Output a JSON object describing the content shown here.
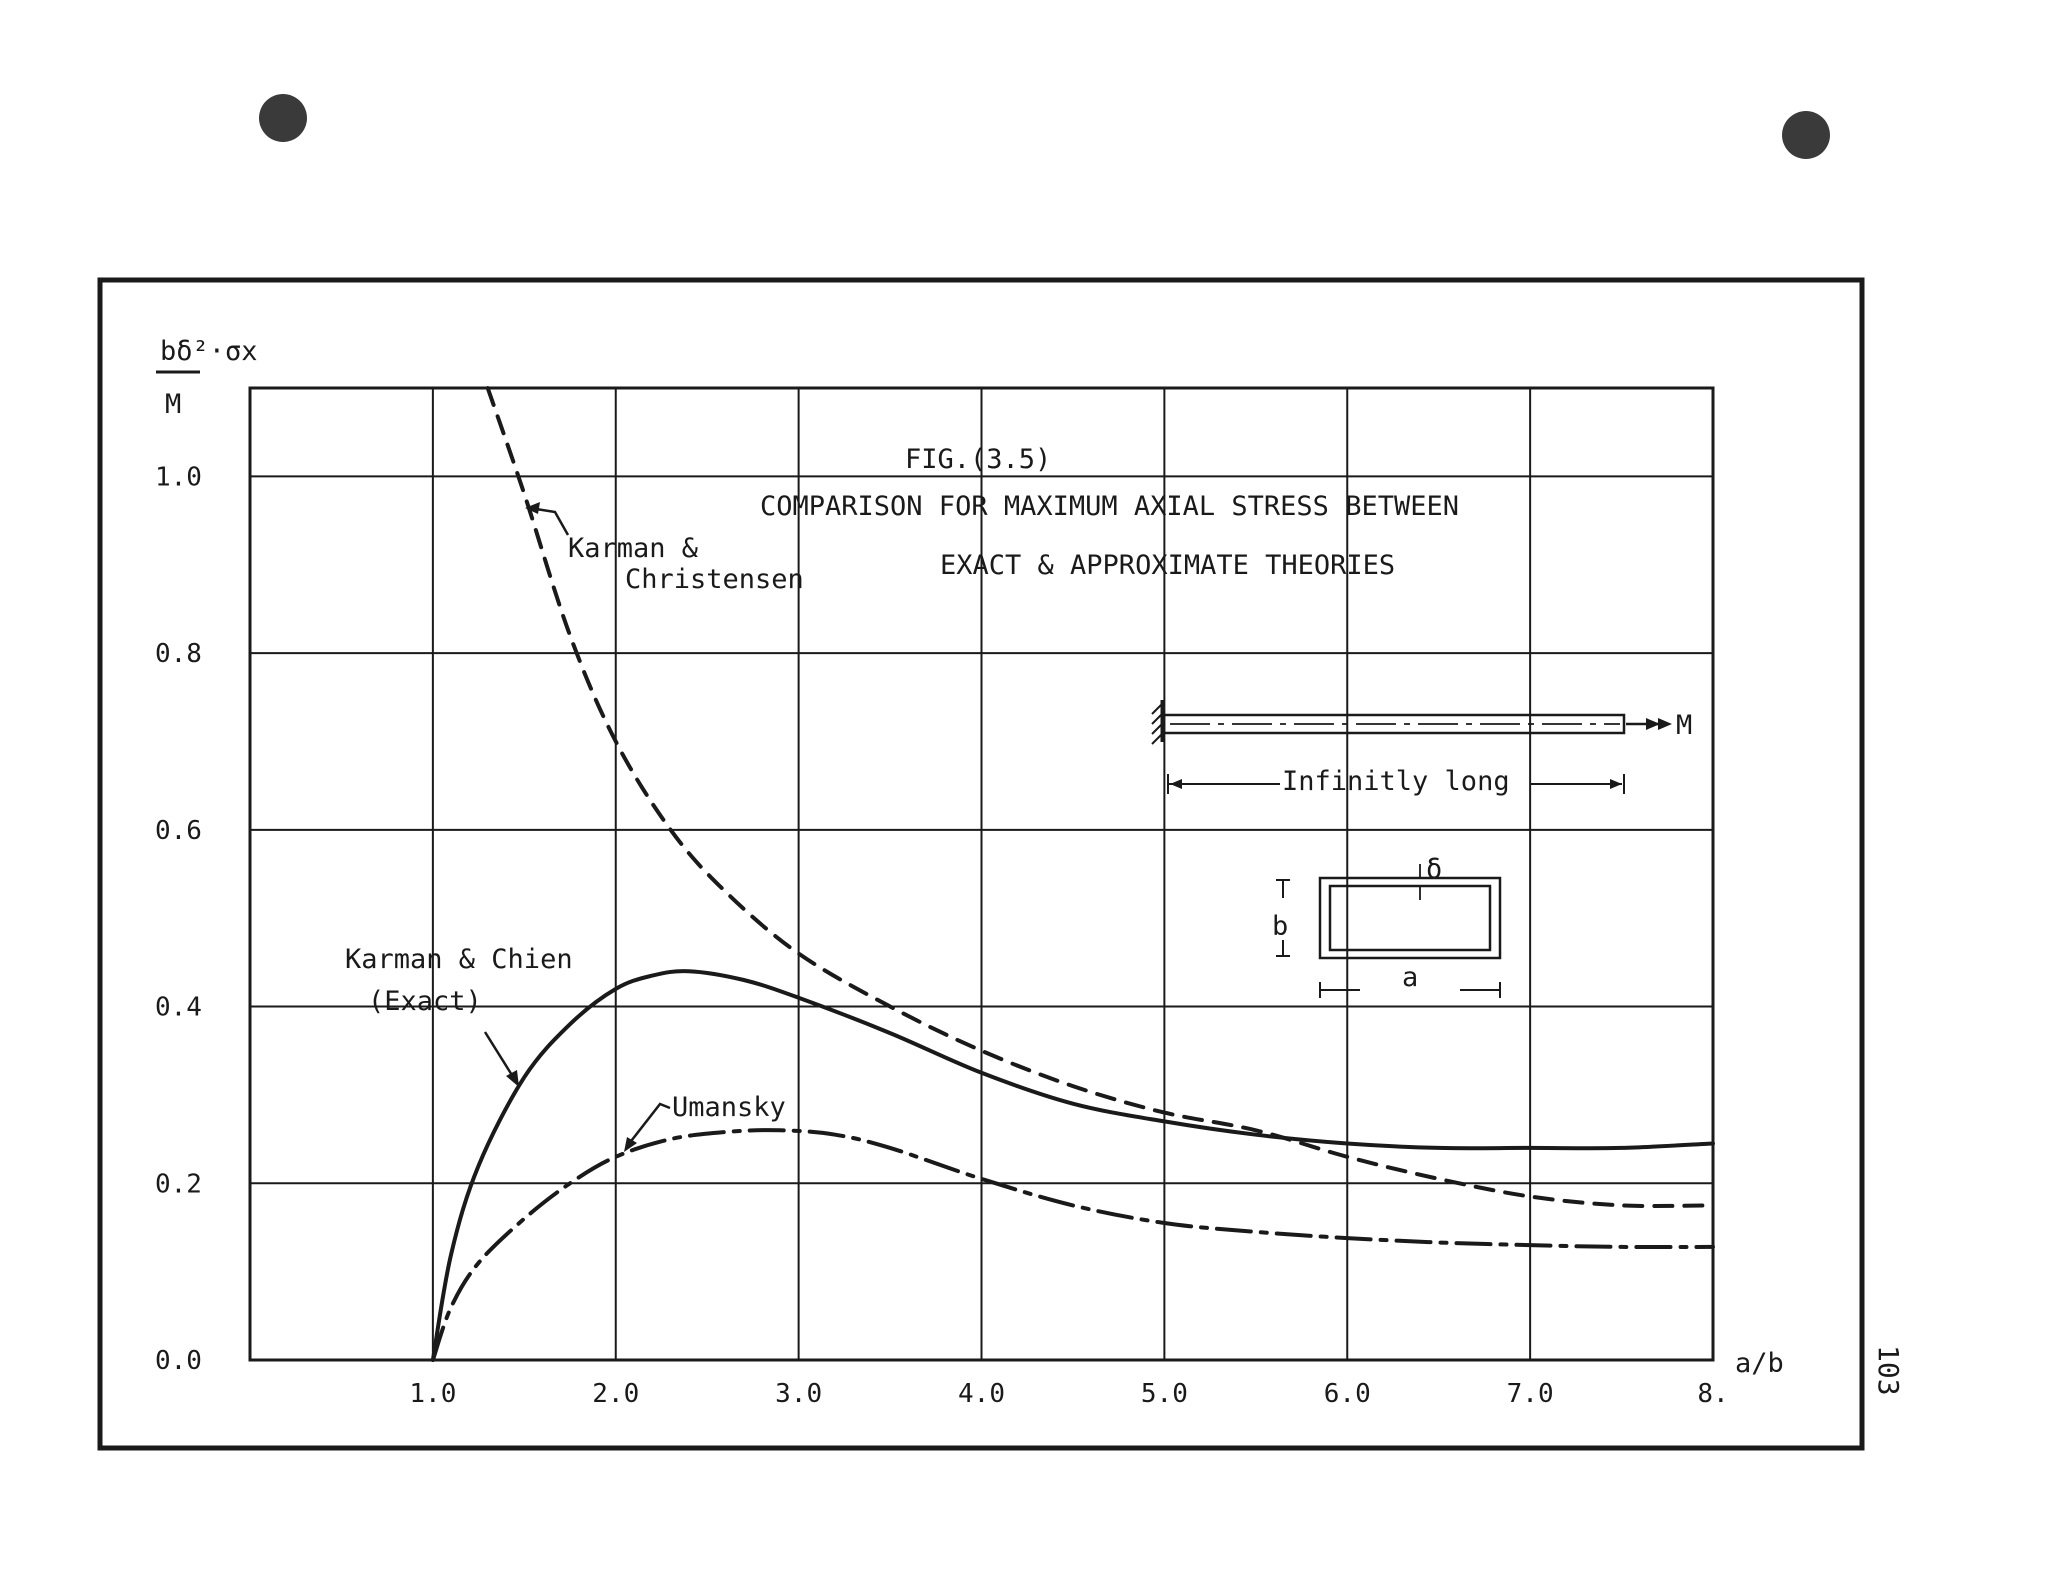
{
  "page_number": "103",
  "chart_data": {
    "type": "line",
    "title": "FIG.(3.5)",
    "subtitle_line1": "COMPARISON FOR MAXIMUM AXIAL STRESS BETWEEN",
    "subtitle_line2": "EXACT & APPROXIMATE THEORIES",
    "ylabel_top": "bδ²·σx",
    "ylabel_bottom": "M",
    "xlabel": "a/b",
    "xlim": [
      0,
      8
    ],
    "ylim": [
      0,
      1.1
    ],
    "grid": true,
    "x_ticks": [
      1,
      2,
      3,
      4,
      5,
      6,
      7,
      8
    ],
    "x_tick_labels": [
      "1.0",
      "2.0",
      "3.0",
      "4.0",
      "5.0",
      "6.0",
      "7.0",
      "8."
    ],
    "y_ticks": [
      0,
      0.2,
      0.4,
      0.6,
      0.8,
      1.0
    ],
    "y_tick_labels": [
      "0.0",
      "0.2",
      "0.4",
      "0.6",
      "0.8",
      "1.0"
    ],
    "series": [
      {
        "name": "Karman & Christensen",
        "style": "dashed",
        "x": [
          1.3,
          1.5,
          1.75,
          2.0,
          2.3,
          2.6,
          3.0,
          3.5,
          4.0,
          4.5,
          5.0,
          5.5,
          6.0,
          6.5,
          7.0,
          7.5,
          8.0
        ],
        "y": [
          1.1,
          0.98,
          0.82,
          0.7,
          0.6,
          0.53,
          0.46,
          0.4,
          0.35,
          0.31,
          0.28,
          0.26,
          0.23,
          0.205,
          0.185,
          0.175,
          0.175
        ]
      },
      {
        "name": "Karman & Chien (Exact)",
        "style": "solid",
        "x": [
          1.0,
          1.1,
          1.25,
          1.5,
          1.75,
          2.0,
          2.2,
          2.4,
          2.7,
          3.0,
          3.5,
          4.0,
          4.5,
          5.0,
          5.5,
          6.0,
          6.5,
          7.0,
          7.5,
          8.0
        ],
        "y": [
          0.0,
          0.12,
          0.22,
          0.32,
          0.38,
          0.42,
          0.435,
          0.44,
          0.43,
          0.41,
          0.37,
          0.325,
          0.29,
          0.27,
          0.255,
          0.245,
          0.24,
          0.24,
          0.24,
          0.245
        ]
      },
      {
        "name": "Umansky",
        "style": "dash-dot",
        "x": [
          1.0,
          1.1,
          1.25,
          1.5,
          1.75,
          2.0,
          2.3,
          2.6,
          2.9,
          3.2,
          3.5,
          4.0,
          4.5,
          5.0,
          5.5,
          6.0,
          6.5,
          7.0,
          7.5,
          8.0
        ],
        "y": [
          0.0,
          0.06,
          0.11,
          0.16,
          0.2,
          0.23,
          0.25,
          0.258,
          0.26,
          0.255,
          0.24,
          0.205,
          0.175,
          0.155,
          0.145,
          0.138,
          0.133,
          0.13,
          0.128,
          0.128
        ]
      }
    ],
    "annotations": {
      "kc_line1": "Karman &",
      "kc_line2": "Christensen",
      "kchien_line1": "Karman & Chien",
      "kchien_line2": "(Exact)",
      "umansky": "Umansky"
    }
  },
  "inset": {
    "moment_label": "M",
    "length_label": "Infinitly long",
    "thickness_label": "δ",
    "height_label": "b",
    "width_label": "a"
  }
}
